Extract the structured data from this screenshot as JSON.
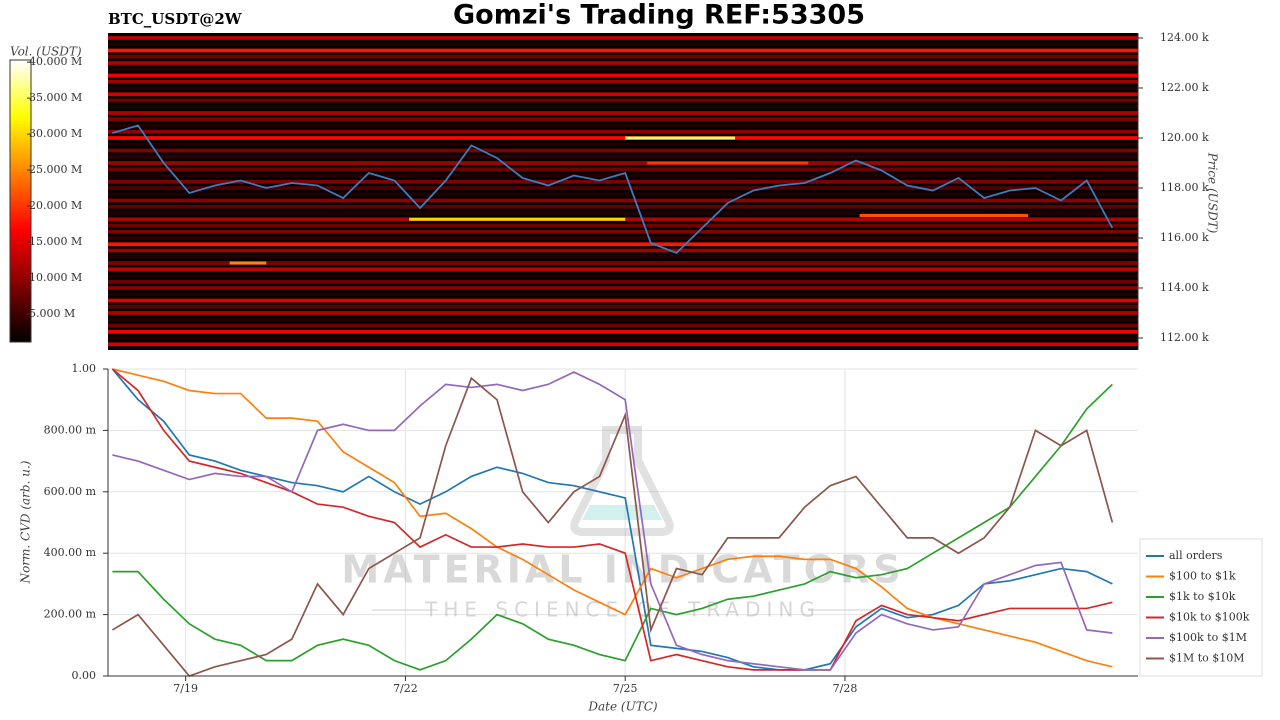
{
  "chart_data": [
    {
      "type": "heatmap",
      "title": "Gomzi's Trading REF:53305",
      "subtitle": "BTC_USDT@2W",
      "y_label": "Price (USDT)",
      "colorbar_label": "Vol. (USDT)",
      "xlim": [
        17.94,
        32.0
      ],
      "ylim": [
        111520,
        124200
      ],
      "yticks": [
        {
          "value": 112000,
          "label": "112.00 k"
        },
        {
          "value": 114000,
          "label": "114.00 k"
        },
        {
          "value": 116000,
          "label": "116.00 k"
        },
        {
          "value": 118000,
          "label": "118.00 k"
        },
        {
          "value": 120000,
          "label": "120.00 k"
        },
        {
          "value": 122000,
          "label": "122.00 k"
        },
        {
          "value": 124000,
          "label": "124.00 k"
        }
      ],
      "clim": [
        1100000,
        40300000
      ],
      "cticks": [
        {
          "value": 5000000,
          "label": "5.000 M"
        },
        {
          "value": 10000000,
          "label": "10.000 M"
        },
        {
          "value": 15000000,
          "label": "15.000 M"
        },
        {
          "value": 20000000,
          "label": "20.000 M"
        },
        {
          "value": 25000000,
          "label": "25.000 M"
        },
        {
          "value": 30000000,
          "label": "30.000 M"
        },
        {
          "value": 35000000,
          "label": "35.000 M"
        },
        {
          "value": 40000000,
          "label": "40.000 M"
        }
      ],
      "heatmap": {
        "levels": [
          111750,
          112000,
          112250,
          112500,
          112750,
          113000,
          113250,
          113500,
          113750,
          114000,
          114250,
          114500,
          114750,
          115000,
          115250,
          115500,
          115750,
          116000,
          116250,
          116500,
          116750,
          117000,
          117250,
          117500,
          117750,
          118000,
          118250,
          118500,
          118750,
          119000,
          119250,
          119500,
          119750,
          120000,
          120250,
          120500,
          120750,
          121000,
          121250,
          121500,
          121750,
          122000,
          122250,
          122500,
          122750,
          123000,
          123250,
          123500,
          123750,
          124000
        ],
        "volumes": [
          14000000,
          3000000,
          16000000,
          8000000,
          3000000,
          12000000,
          7000000,
          15000000,
          3000000,
          10000000,
          8000000,
          2500000,
          13000000,
          9000000,
          3000000,
          11000000,
          18000000,
          4000000,
          9000000,
          8000000,
          12000000,
          3000000,
          7000000,
          10000000,
          3000000,
          6000000,
          9000000,
          3000000,
          8000000,
          11000000,
          4000000,
          9000000,
          3000000,
          17000000,
          10000000,
          3000000,
          9000000,
          12000000,
          3000000,
          8000000,
          14000000,
          3000000,
          11000000,
          16000000,
          3000000,
          12000000,
          8000000,
          18000000,
          3000000,
          13000000
        ],
        "segments": [
          {
            "x": [
              25.0,
              26.5
            ],
            "level": 120000,
            "volume": 36000000
          },
          {
            "x": [
              22.05,
              25.0
            ],
            "level": 116750,
            "volume": 30000000
          },
          {
            "x": [
              19.6,
              20.1
            ],
            "level": 115000,
            "volume": 25000000
          },
          {
            "x": [
              28.2,
              30.5
            ],
            "level": 116900,
            "volume": 22000000
          },
          {
            "x": [
              25.3,
              27.5
            ],
            "level": 119000,
            "volume": 20000000
          }
        ]
      },
      "x": [
        18.0,
        18.35,
        18.7,
        19.05,
        19.4,
        19.75,
        20.1,
        20.45,
        20.8,
        21.15,
        21.5,
        21.85,
        22.2,
        22.55,
        22.9,
        23.25,
        23.6,
        23.95,
        24.3,
        24.65,
        25.0,
        25.35,
        25.7,
        26.05,
        26.4,
        26.75,
        27.1,
        27.45,
        27.8,
        28.15,
        28.5,
        28.85,
        29.2,
        29.55,
        29.9,
        30.25,
        30.6,
        30.95,
        31.3,
        31.65
      ],
      "series": [
        {
          "color": "#3a7dc0",
          "values": [
            120200,
            120500,
            119000,
            117800,
            118100,
            118300,
            118000,
            118200,
            118100,
            117600,
            118600,
            118300,
            117200,
            118300,
            119700,
            119200,
            118400,
            118100,
            118500,
            118300,
            118600,
            115800,
            115400,
            116400,
            117400,
            117900,
            118100,
            118200,
            118600,
            119100,
            118700,
            118100,
            117900,
            118400,
            117600,
            117900,
            118000,
            117500,
            118300,
            116400
          ]
        }
      ]
    },
    {
      "type": "line",
      "x_label": "Date (UTC)",
      "y_label": "Norm. CVD (arb. u.)",
      "annotations": [
        "MATERIAL INDICATORS",
        "THE SCIENCE OF TRADING"
      ],
      "grid": true,
      "legend": "lower right",
      "xlim": [
        17.94,
        32.0
      ],
      "xticks": [
        {
          "value": 19,
          "label": "7/19"
        },
        {
          "value": 22,
          "label": "7/22"
        },
        {
          "value": 25,
          "label": "7/25"
        },
        {
          "value": 28,
          "label": "7/28"
        }
      ],
      "ylim": [
        0,
        1.0
      ],
      "yticks": [
        {
          "value": 0,
          "label": "0.00"
        },
        {
          "value": 0.2,
          "label": "200.00 m"
        },
        {
          "value": 0.4,
          "label": "400.00 m"
        },
        {
          "value": 0.6,
          "label": "600.00 m"
        },
        {
          "value": 0.8,
          "label": "800.00 m"
        },
        {
          "value": 1.0,
          "label": "1.00"
        }
      ],
      "x": [
        18.0,
        18.35,
        18.7,
        19.05,
        19.4,
        19.75,
        20.1,
        20.45,
        20.8,
        21.15,
        21.5,
        21.85,
        22.2,
        22.55,
        22.9,
        23.25,
        23.6,
        23.95,
        24.3,
        24.65,
        25.0,
        25.35,
        25.7,
        26.05,
        26.4,
        26.75,
        27.1,
        27.45,
        27.8,
        28.15,
        28.5,
        28.85,
        29.2,
        29.55,
        29.9,
        30.25,
        30.6,
        30.95,
        31.3,
        31.65
      ],
      "series": [
        {
          "name": "all orders",
          "color": "#1f77b4",
          "values": [
            1.0,
            0.9,
            0.83,
            0.72,
            0.7,
            0.67,
            0.65,
            0.63,
            0.62,
            0.6,
            0.65,
            0.6,
            0.56,
            0.6,
            0.65,
            0.68,
            0.66,
            0.63,
            0.62,
            0.6,
            0.58,
            0.1,
            0.09,
            0.08,
            0.06,
            0.03,
            0.02,
            0.02,
            0.04,
            0.16,
            0.22,
            0.19,
            0.2,
            0.23,
            0.3,
            0.31,
            0.33,
            0.35,
            0.34,
            0.3
          ]
        },
        {
          "name": "$100 to $1k",
          "color": "#ff7f0e",
          "values": [
            1.0,
            0.98,
            0.96,
            0.93,
            0.92,
            0.92,
            0.84,
            0.84,
            0.83,
            0.73,
            0.68,
            0.63,
            0.52,
            0.53,
            0.48,
            0.42,
            0.38,
            0.33,
            0.28,
            0.24,
            0.2,
            0.35,
            0.32,
            0.35,
            0.38,
            0.39,
            0.39,
            0.38,
            0.38,
            0.35,
            0.29,
            0.22,
            0.19,
            0.17,
            0.15,
            0.13,
            0.11,
            0.08,
            0.05,
            0.03
          ]
        },
        {
          "name": "$1k to $10k",
          "color": "#2ca02c",
          "values": [
            0.34,
            0.34,
            0.25,
            0.17,
            0.12,
            0.1,
            0.05,
            0.05,
            0.1,
            0.12,
            0.1,
            0.05,
            0.02,
            0.05,
            0.12,
            0.2,
            0.17,
            0.12,
            0.1,
            0.07,
            0.05,
            0.22,
            0.2,
            0.22,
            0.25,
            0.26,
            0.28,
            0.3,
            0.34,
            0.32,
            0.33,
            0.35,
            0.4,
            0.45,
            0.5,
            0.55,
            0.65,
            0.75,
            0.87,
            0.95
          ]
        },
        {
          "name": "$10k to $100k",
          "color": "#d62728",
          "values": [
            1.0,
            0.93,
            0.8,
            0.7,
            0.68,
            0.66,
            0.63,
            0.6,
            0.56,
            0.55,
            0.52,
            0.5,
            0.42,
            0.46,
            0.42,
            0.42,
            0.43,
            0.42,
            0.42,
            0.43,
            0.4,
            0.05,
            0.07,
            0.05,
            0.03,
            0.02,
            0.02,
            0.02,
            0.02,
            0.18,
            0.23,
            0.2,
            0.19,
            0.18,
            0.2,
            0.22,
            0.22,
            0.22,
            0.22,
            0.24
          ]
        },
        {
          "name": "$100k to $1M",
          "color": "#9467bd",
          "values": [
            0.72,
            0.7,
            0.67,
            0.64,
            0.66,
            0.65,
            0.65,
            0.6,
            0.8,
            0.82,
            0.8,
            0.8,
            0.88,
            0.95,
            0.94,
            0.95,
            0.93,
            0.95,
            0.99,
            0.95,
            0.9,
            0.3,
            0.1,
            0.07,
            0.05,
            0.04,
            0.03,
            0.02,
            0.02,
            0.14,
            0.2,
            0.17,
            0.15,
            0.16,
            0.3,
            0.33,
            0.36,
            0.37,
            0.15,
            0.14
          ]
        },
        {
          "name": "$1M to $10M",
          "color": "#8c564b",
          "values": [
            0.15,
            0.2,
            0.1,
            0.0,
            0.03,
            0.05,
            0.07,
            0.12,
            0.3,
            0.2,
            0.35,
            0.4,
            0.45,
            0.75,
            0.97,
            0.9,
            0.6,
            0.5,
            0.6,
            0.65,
            0.85,
            0.15,
            0.35,
            0.33,
            0.45,
            0.45,
            0.45,
            0.55,
            0.62,
            0.65,
            0.55,
            0.45,
            0.45,
            0.4,
            0.45,
            0.55,
            0.8,
            0.75,
            0.8,
            0.5
          ]
        }
      ]
    }
  ]
}
